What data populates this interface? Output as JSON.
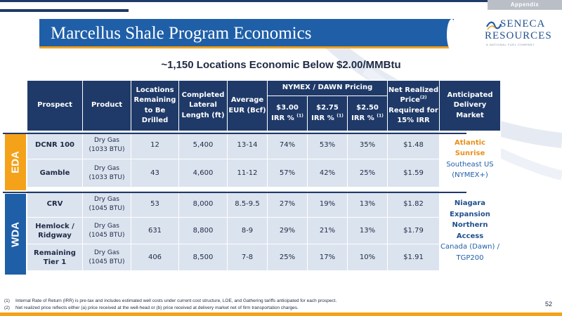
{
  "appendix_tag": "Appendix",
  "title": "Marcellus Shale Program Economics",
  "logo": {
    "line1": "SENECA",
    "line2": "RESOURCES",
    "line3": "A NATIONAL FUEL COMPANY",
    "icon": "seneca-wave-icon"
  },
  "subtitle": "~1,150 Locations Economic Below $2.00/MMBtu",
  "table": {
    "headers": {
      "prospect": "Prospect",
      "product": "Product",
      "locations": [
        "Locations",
        "Remaining",
        "to Be Drilled"
      ],
      "lateral": [
        "Completed",
        "Lateral",
        "Length (ft)"
      ],
      "eur": [
        "Average",
        "EUR (Bcf)"
      ],
      "pricing_group": "NYMEX / DAWN Pricing",
      "price_3_00": "$3.00",
      "price_2_75": "$2.75",
      "price_2_50": "$2.50",
      "irr_label": "IRR %",
      "irr_sup": "(1)",
      "net_price": [
        "Net Realized",
        "Price",
        "Required for",
        "15% IRR"
      ],
      "net_price_sup": "(2)",
      "market": [
        "Anticipated",
        "Delivery",
        "Market"
      ]
    },
    "eda_label": "EDA",
    "wda_label": "WDA",
    "rows": [
      {
        "prospect": [
          "DCNR 100"
        ],
        "product": [
          "Dry Gas",
          "(1033 BTU)"
        ],
        "locations": "12",
        "lateral": "5,400",
        "eur": "13-14",
        "irr_300": "74%",
        "irr_275": "53%",
        "irr_250": "35%",
        "net_price": "$1.48"
      },
      {
        "prospect": [
          "Gamble"
        ],
        "product": [
          "Dry Gas",
          "(1033 BTU)"
        ],
        "locations": "43",
        "lateral": "4,600",
        "eur": "11-12",
        "irr_300": "57%",
        "irr_275": "42%",
        "irr_250": "25%",
        "net_price": "$1.59"
      },
      {
        "prospect": [
          "CRV"
        ],
        "product": [
          "Dry Gas",
          "(1045 BTU)"
        ],
        "locations": "53",
        "lateral": "8,000",
        "eur": "8.5-9.5",
        "irr_300": "27%",
        "irr_275": "19%",
        "irr_250": "13%",
        "net_price": "$1.82"
      },
      {
        "prospect": [
          "Hemlock /",
          "Ridgway"
        ],
        "product": [
          "Dry Gas",
          "(1045 BTU)"
        ],
        "locations": "631",
        "lateral": "8,800",
        "eur": "8-9",
        "irr_300": "29%",
        "irr_275": "21%",
        "irr_250": "13%",
        "net_price": "$1.79"
      },
      {
        "prospect": [
          "Remaining",
          "Tier 1"
        ],
        "product": [
          "Dry Gas",
          "(1045 BTU)"
        ],
        "locations": "406",
        "lateral": "8,500",
        "eur": "7-8",
        "irr_300": "25%",
        "irr_275": "17%",
        "irr_250": "10%",
        "net_price": "$1.91"
      }
    ],
    "eda_market": [
      "Atlantic Sunrise",
      "Southeast US",
      "(NYMEX+)"
    ],
    "wda_market": [
      "Niagara Expansion",
      "Northern Access",
      "Canada (Dawn) /",
      "TGP200"
    ]
  },
  "footnotes": [
    {
      "num": "(1)",
      "text": "Internal Rate of Return (IRR) is pre-tax and includes estimated well costs under current cost structure, LOE, and Gathering tariffs anticipated for each prospect."
    },
    {
      "num": "(2)",
      "text": "Net realized price reflects either (a) price received at the well-head or (b) price received at delivery market net of firm transportation charges."
    }
  ],
  "page_number": "52",
  "colors": {
    "navy": "#1f3a68",
    "blue": "#1f5fa8",
    "orange": "#f4a21a",
    "cell": "#dbe3ef"
  }
}
